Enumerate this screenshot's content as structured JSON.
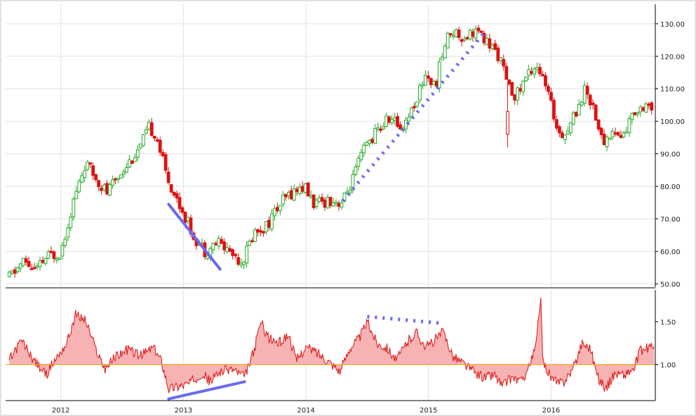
{
  "chart_data": [
    {
      "type": "candlestick",
      "x_ticks": [
        "2012",
        "2013",
        "2014",
        "2015",
        "2016"
      ],
      "y_ticks": [
        "50.00",
        "60.00",
        "70.00",
        "80.00",
        "90.00",
        "100.00",
        "110.00",
        "120.00",
        "130.00"
      ],
      "ylim": [
        49,
        136
      ],
      "xlim": [
        2011.55,
        2016.85
      ],
      "grid": true,
      "up_color": "#22aa22",
      "down_color": "#dd1111",
      "price_path": [
        [
          2011.58,
          52
        ],
        [
          2011.7,
          57
        ],
        [
          2011.8,
          54
        ],
        [
          2011.88,
          58
        ],
        [
          2012.0,
          60
        ],
        [
          2012.1,
          75
        ],
        [
          2012.2,
          87
        ],
        [
          2012.3,
          82
        ],
        [
          2012.38,
          78
        ],
        [
          2012.5,
          85
        ],
        [
          2012.65,
          92
        ],
        [
          2012.72,
          98
        ],
        [
          2012.78,
          96
        ],
        [
          2012.85,
          85
        ],
        [
          2012.92,
          78
        ],
        [
          2013.0,
          72
        ],
        [
          2013.08,
          65
        ],
        [
          2013.18,
          60
        ],
        [
          2013.28,
          63
        ],
        [
          2013.38,
          60
        ],
        [
          2013.48,
          57
        ],
        [
          2013.58,
          66
        ],
        [
          2013.68,
          68
        ],
        [
          2013.78,
          74
        ],
        [
          2013.88,
          78
        ],
        [
          2013.98,
          80
        ],
        [
          2014.08,
          74
        ],
        [
          2014.18,
          76
        ],
        [
          2014.3,
          75
        ],
        [
          2014.38,
          82
        ],
        [
          2014.48,
          92
        ],
        [
          2014.58,
          97
        ],
        [
          2014.68,
          101
        ],
        [
          2014.78,
          98
        ],
        [
          2014.88,
          105
        ],
        [
          2014.98,
          115
        ],
        [
          2015.05,
          110
        ],
        [
          2015.12,
          122
        ],
        [
          2015.18,
          128
        ],
        [
          2015.28,
          126
        ],
        [
          2015.38,
          128
        ],
        [
          2015.48,
          124
        ],
        [
          2015.58,
          120
        ],
        [
          2015.65,
          110
        ],
        [
          2015.72,
          108
        ],
        [
          2015.8,
          114
        ],
        [
          2015.88,
          118
        ],
        [
          2015.96,
          110
        ],
        [
          2016.05,
          98
        ],
        [
          2016.12,
          96
        ],
        [
          2016.2,
          103
        ],
        [
          2016.28,
          110
        ],
        [
          2016.35,
          104
        ],
        [
          2016.42,
          93
        ],
        [
          2016.5,
          97
        ],
        [
          2016.58,
          95
        ],
        [
          2016.68,
          103
        ],
        [
          2016.78,
          106
        ],
        [
          2016.82,
          104
        ]
      ],
      "trendlines": [
        {
          "style": "solid",
          "points": [
            [
              2012.88,
              74.5
            ],
            [
              2013.3,
              54.5
            ]
          ]
        },
        {
          "style": "dotted",
          "points": [
            [
              2014.3,
              75.5
            ],
            [
              2015.45,
              127
            ]
          ]
        }
      ]
    },
    {
      "type": "area",
      "y_ticks": [
        "1.00",
        "1.50"
      ],
      "ylim": [
        0.58,
        1.87
      ],
      "baseline": 1.0,
      "fill": "#f7b3b3",
      "line": "#dd1111",
      "baseline_color": "#f5a020",
      "ratio_path": [
        [
          2011.58,
          1.05
        ],
        [
          2011.68,
          1.28
        ],
        [
          2011.78,
          1.05
        ],
        [
          2011.88,
          0.88
        ],
        [
          2011.95,
          1.05
        ],
        [
          2012.05,
          1.25
        ],
        [
          2012.12,
          1.58
        ],
        [
          2012.2,
          1.52
        ],
        [
          2012.28,
          1.2
        ],
        [
          2012.36,
          0.95
        ],
        [
          2012.45,
          1.1
        ],
        [
          2012.55,
          1.18
        ],
        [
          2012.65,
          1.1
        ],
        [
          2012.75,
          1.2
        ],
        [
          2012.82,
          1.05
        ],
        [
          2012.88,
          0.72
        ],
        [
          2012.96,
          0.75
        ],
        [
          2013.05,
          0.78
        ],
        [
          2013.15,
          0.9
        ],
        [
          2013.22,
          0.8
        ],
        [
          2013.3,
          0.92
        ],
        [
          2013.4,
          0.95
        ],
        [
          2013.5,
          0.85
        ],
        [
          2013.58,
          1.18
        ],
        [
          2013.63,
          1.5
        ],
        [
          2013.7,
          1.3
        ],
        [
          2013.78,
          1.25
        ],
        [
          2013.86,
          1.35
        ],
        [
          2013.92,
          1.05
        ],
        [
          2014.0,
          1.2
        ],
        [
          2014.08,
          1.15
        ],
        [
          2014.18,
          1.05
        ],
        [
          2014.28,
          0.92
        ],
        [
          2014.36,
          1.2
        ],
        [
          2014.44,
          1.32
        ],
        [
          2014.5,
          1.5
        ],
        [
          2014.58,
          1.25
        ],
        [
          2014.66,
          1.2
        ],
        [
          2014.74,
          1.05
        ],
        [
          2014.82,
          1.25
        ],
        [
          2014.9,
          1.38
        ],
        [
          2014.98,
          1.2
        ],
        [
          2015.06,
          1.3
        ],
        [
          2015.12,
          1.38
        ],
        [
          2015.2,
          1.1
        ],
        [
          2015.3,
          1.0
        ],
        [
          2015.38,
          0.9
        ],
        [
          2015.46,
          0.85
        ],
        [
          2015.54,
          0.88
        ],
        [
          2015.6,
          0.75
        ],
        [
          2015.68,
          0.85
        ],
        [
          2015.76,
          0.8
        ],
        [
          2015.84,
          1.05
        ],
        [
          2015.88,
          1.25
        ],
        [
          2015.915,
          1.82
        ],
        [
          2015.93,
          1.05
        ],
        [
          2016.0,
          0.85
        ],
        [
          2016.05,
          0.78
        ],
        [
          2016.1,
          0.8
        ],
        [
          2016.18,
          0.95
        ],
        [
          2016.25,
          1.25
        ],
        [
          2016.32,
          1.2
        ],
        [
          2016.38,
          0.85
        ],
        [
          2016.45,
          0.72
        ],
        [
          2016.52,
          0.9
        ],
        [
          2016.6,
          0.88
        ],
        [
          2016.68,
          0.95
        ],
        [
          2016.72,
          1.15
        ],
        [
          2016.8,
          1.2
        ],
        [
          2016.84,
          1.22
        ]
      ],
      "trendlines": [
        {
          "style": "solid",
          "points": [
            [
              2012.88,
              0.6
            ],
            [
              2013.5,
              0.8
            ]
          ]
        },
        {
          "style": "dotted",
          "points": [
            [
              2014.5,
              1.56
            ],
            [
              2015.12,
              1.48
            ]
          ]
        }
      ]
    }
  ]
}
